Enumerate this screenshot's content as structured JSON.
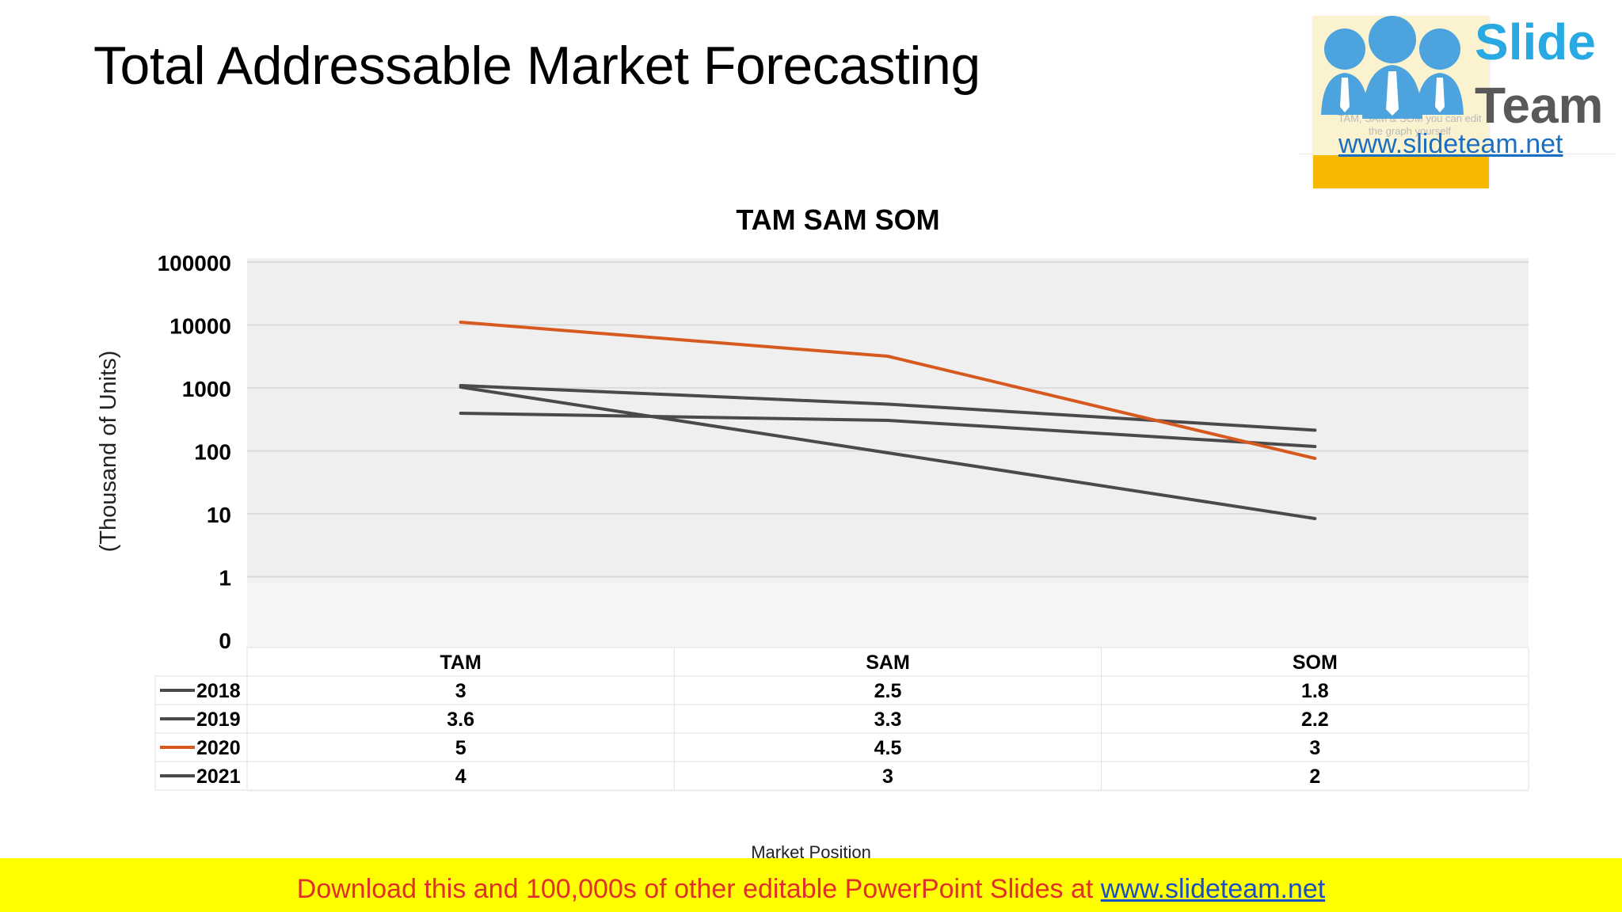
{
  "slide": {
    "title": "Total Addressable Market Forecasting"
  },
  "logo": {
    "brand_top": "Slide",
    "brand_bottom": "Team",
    "url": "www.slideteam.net",
    "ghost_note": "TAM, SAM & SOM you can edit the graph yourself"
  },
  "colors": {
    "default_series": "#4a4a4d",
    "highlight_series": "#d65a1f",
    "plot_background": "#f1f1f1",
    "footer_background": "#ffff00",
    "footer_text": "#e0302a",
    "footer_link": "#1a4fc4"
  },
  "chart_data": {
    "type": "line",
    "title": "TAM SAM SOM",
    "xlabel": "Market Position",
    "ylabel": "(Thousand of Units)",
    "y_scale": "log",
    "y_ticks": [
      "0",
      "1",
      "10",
      "100",
      "1000",
      "10000",
      "100000"
    ],
    "categories": [
      "TAM",
      "SAM",
      "SOM"
    ],
    "grid": true,
    "legend": "data-table",
    "series": [
      {
        "name": "2018",
        "values": [
          3,
          2.5,
          1.8
        ],
        "color": "#4a4a4d"
      },
      {
        "name": "2019",
        "values": [
          3.6,
          3.3,
          2.2
        ],
        "color": "#4a4a4d"
      },
      {
        "name": "2020",
        "values": [
          5,
          4.5,
          3
        ],
        "color": "#d65a1f"
      },
      {
        "name": "2021",
        "values": [
          4,
          3,
          2
        ],
        "color": "#4a4a4d"
      }
    ]
  },
  "footer": {
    "text": "Download this and 100,000s of other editable PowerPoint Slides at ",
    "link": "www.slideteam.net"
  }
}
